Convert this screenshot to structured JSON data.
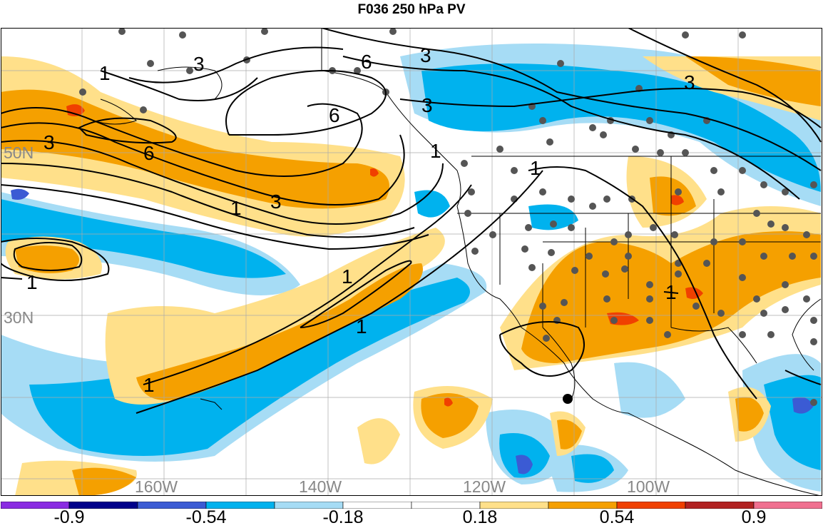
{
  "title": "F036 250 hPa PV",
  "lat_labels": [
    "50N",
    "30N"
  ],
  "lon_labels": [
    "160W",
    "140W",
    "120W",
    "100W"
  ],
  "contour_labels": [
    "3",
    "6",
    "3",
    "6",
    "3",
    "3",
    "6",
    "3",
    "1",
    "1",
    "3",
    "1",
    "1",
    "1",
    "1",
    "1",
    "1",
    "1"
  ],
  "colorbar": {
    "labels": [
      "-0.9",
      "-0.54",
      "-0.18",
      "0.18",
      "0.54",
      "0.9"
    ],
    "colors": [
      "#8a2be2",
      "#00008b",
      "#3b5bd4",
      "#00b2ee",
      "#a6dcf5",
      "#ffffff",
      "#ffffff",
      "#ffe08a",
      "#f5a000",
      "#f04000",
      "#b22222",
      "#f07090"
    ]
  },
  "colors": {
    "ocean_blue": "#00b2ee",
    "light_blue": "#a6dcf5",
    "light_yellow": "#ffe08a",
    "orange": "#f5a000",
    "red": "#f04000",
    "dark_blue": "#3b5bd4"
  }
}
